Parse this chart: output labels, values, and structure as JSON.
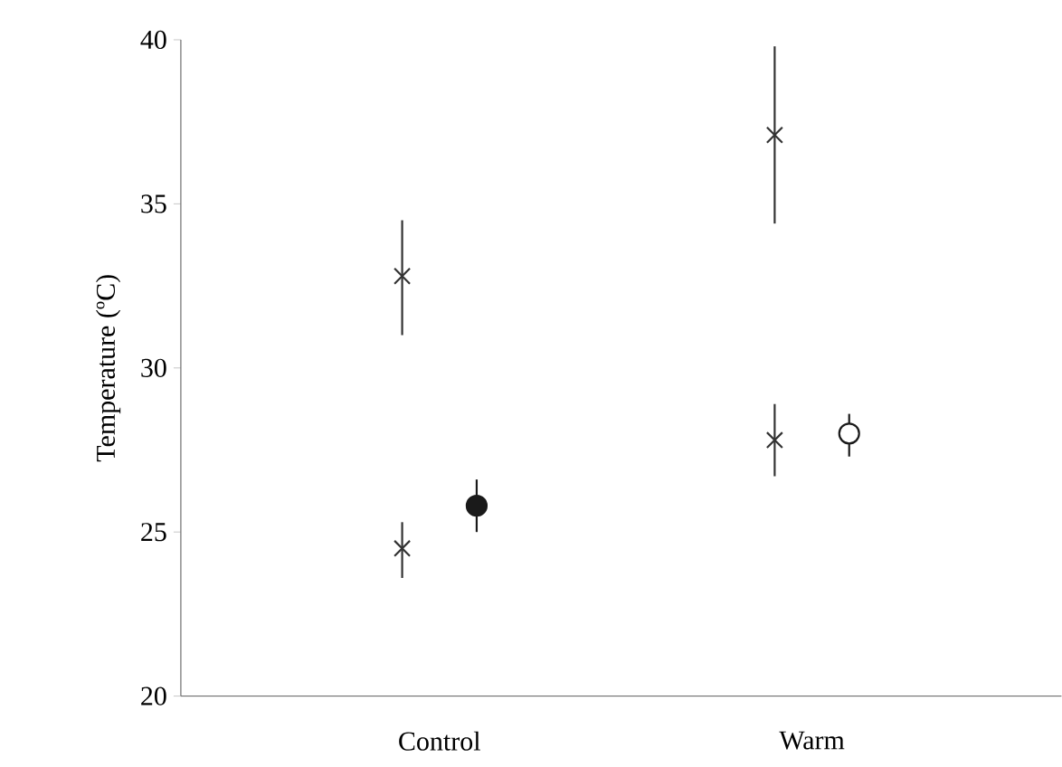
{
  "chart_data": {
    "type": "scatter",
    "ylabel": "Temperature (ºC)",
    "categories": [
      "Control",
      "Warm"
    ],
    "ylim": [
      20,
      40
    ],
    "yticks": [
      20,
      25,
      30,
      35,
      40
    ],
    "series": [
      {
        "marker": "cross",
        "color": "#333333",
        "x": [
          "Control",
          "Warm"
        ],
        "values": [
          32.8,
          37.1
        ],
        "errors": [
          [
            31.0,
            34.5
          ],
          [
            34.4,
            39.8
          ]
        ]
      },
      {
        "marker": "cross",
        "color": "#333333",
        "x": [
          "Control",
          "Warm"
        ],
        "values": [
          24.5,
          27.8
        ],
        "errors": [
          [
            23.6,
            25.3
          ],
          [
            26.7,
            28.9
          ]
        ]
      },
      {
        "marker": "circle",
        "color": "#1a1a1a",
        "colors": [
          "#1a1a1a",
          "#ffffff"
        ],
        "x": [
          "Control",
          "Warm"
        ],
        "values": [
          25.8,
          28.0
        ],
        "errors": [
          [
            25.0,
            26.6
          ],
          [
            27.3,
            28.6
          ]
        ]
      }
    ]
  }
}
